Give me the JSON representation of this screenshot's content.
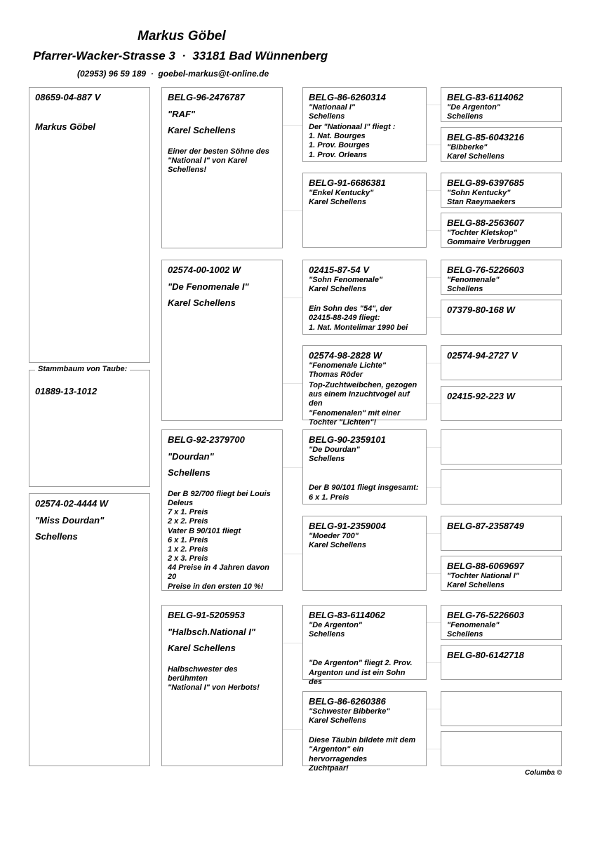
{
  "header": {
    "name": "Markus Göbel",
    "address": "Pfarrer-Wacker-Strasse 3  ·  33181 Bad Wünnenberg",
    "contact": "(02953) 96 59 189  ·  goebel-markus@t-online.de"
  },
  "subject": {
    "ring": "08659-04-887 V",
    "name": "Markus Göbel"
  },
  "owner_box": {
    "legend": "Stammbaum von Taube:",
    "ring": "01889-13-1012"
  },
  "dam_col1": {
    "ring": "02574-02-4444 W",
    "name": "\"Miss Dourdan\"",
    "breeder": "Schellens"
  },
  "gen1": [
    {
      "ring": "BELG-96-2476787",
      "name": "\"RAF\"",
      "breeder": "Karel Schellens",
      "note": "Einer der besten Söhne des\n\"National I\" von Karel Schellens!"
    },
    {
      "ring": "02574-00-1002 W",
      "name": "\"De Fenomenale I\"",
      "breeder": "Karel Schellens",
      "note": ""
    },
    {
      "ring": "BELG-92-2379700",
      "name": "\"Dourdan\"",
      "breeder": "Schellens",
      "note": "Der B 92/700 fliegt bei Louis\nDeleus\n7 x 1. Preis\n2 x 2. Preis\nVater B 90/101 fliegt\n6 x 1. Preis\n1 x 2. Preis\n2 x 3. Preis\n44 Preise in 4 Jahren davon 20\nPreise in den ersten 10 %!"
    },
    {
      "ring": "BELG-91-5205953",
      "name": "\"Halbsch.National I\"",
      "breeder": "Karel Schellens",
      "note": "Halbschwester des berühmten\n\"National I\" von Herbots!"
    }
  ],
  "gen2": [
    {
      "ring": "BELG-86-6260314",
      "name": "\"Nationaal I\"",
      "breeder": "Schellens",
      "note": "Der \"Nationaal I\" fliegt :\n1. Nat. Bourges\n1. Prov. Bourges\n1. Prov. Orleans"
    },
    {
      "ring": "BELG-91-6686381",
      "name": "\"Enkel Kentucky\"",
      "breeder": "Karel Schellens",
      "note": ""
    },
    {
      "ring": "02415-87-54 V",
      "name": "\"Sohn Fenomenale\"",
      "breeder": "Karel Schellens",
      "note": "\nEin Sohn des \"54\", der\n02415-88-249 fliegt:\n1. Nat. Montelimar 1990 bei"
    },
    {
      "ring": "02574-98-2828 W",
      "name": "\"Fenomenale Lichte\"",
      "breeder": "Thomas Röder",
      "note": "Top-Zuchtweibchen, gezogen\naus einem Inzuchtvogel auf den\n\"Fenomenalen\" mit einer\nTochter \"Lichten\"!"
    },
    {
      "ring": "BELG-90-2359101",
      "name": "\"De Dourdan\"",
      "breeder": "Schellens",
      "note": "\n\nDer B 90/101 fliegt insgesamt:\n6 x 1. Preis"
    },
    {
      "ring": "BELG-91-2359004",
      "name": "\"Moeder 700\"",
      "breeder": "Karel Schellens",
      "note": ""
    },
    {
      "ring": "BELG-83-6114062",
      "name": "\"De Argenton\"",
      "breeder": "Schellens",
      "note": "\n\n\"De Argenton\" fliegt 2. Prov.\nArgenton und ist ein Sohn des"
    },
    {
      "ring": "BELG-86-6260386",
      "name": "\"Schwester Bibberke\"",
      "breeder": "Karel Schellens",
      "note": "\nDiese Täubin bildete mit dem\n\"Argenton\" ein hervorragendes\nZuchtpaar!"
    }
  ],
  "gen3": [
    {
      "ring": "BELG-83-6114062",
      "name": "\"De Argenton\"",
      "breeder": "Schellens"
    },
    {
      "ring": "BELG-85-6043216",
      "name": "\"Bibberke\"",
      "breeder": "Karel Schellens"
    },
    {
      "ring": "BELG-89-6397685",
      "name": "\"Sohn Kentucky\"",
      "breeder": "Stan Raeymaekers"
    },
    {
      "ring": "BELG-88-2563607",
      "name": "\"Tochter Kletskop\"",
      "breeder": "Gommaire Verbruggen"
    },
    {
      "ring": "BELG-76-5226603",
      "name": "\"Fenomenale\"",
      "breeder": "Schellens"
    },
    {
      "ring": "07379-80-168 W",
      "name": "",
      "breeder": ""
    },
    {
      "ring": "02574-94-2727 V",
      "name": "",
      "breeder": ""
    },
    {
      "ring": "02415-92-223 W",
      "name": "",
      "breeder": ""
    },
    {
      "ring": "",
      "name": "",
      "breeder": ""
    },
    {
      "ring": "",
      "name": "",
      "breeder": ""
    },
    {
      "ring": "BELG-87-2358749",
      "name": "",
      "breeder": ""
    },
    {
      "ring": "BELG-88-6069697",
      "name": "\"Tochter National I\"",
      "breeder": "Karel Schellens"
    },
    {
      "ring": "BELG-76-5226603",
      "name": "\"Fenomenale\"",
      "breeder": "Schellens"
    },
    {
      "ring": "BELG-80-6142718",
      "name": "",
      "breeder": ""
    },
    {
      "ring": "",
      "name": "",
      "breeder": ""
    },
    {
      "ring": "",
      "name": "",
      "breeder": ""
    }
  ],
  "footer": {
    "copyright": "Columba ©"
  }
}
